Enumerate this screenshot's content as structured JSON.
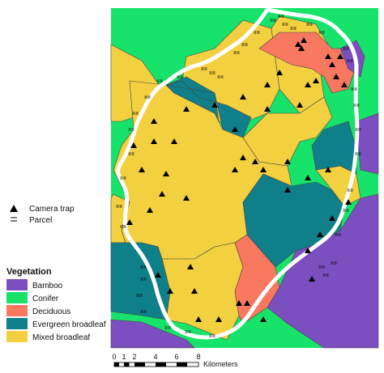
{
  "legend_symbols": [
    {
      "label": "Camera trap",
      "icon": "triangle-icon"
    },
    {
      "label": "Parcel",
      "icon": "parcel-icon"
    }
  ],
  "vegetation": {
    "title": "Vegetation",
    "classes": [
      {
        "label": "Bamboo",
        "color": "#7b4fbf"
      },
      {
        "label": "Conifer",
        "color": "#17e36a"
      },
      {
        "label": "Deciduous",
        "color": "#f97860"
      },
      {
        "label": "Evergreen broadleaf",
        "color": "#0f7f8a"
      },
      {
        "label": "Mixed broadleaf",
        "color": "#f3d040"
      }
    ]
  },
  "scale": {
    "ticks": [
      "0",
      "1",
      "2",
      "4",
      "6",
      "8"
    ],
    "unit": "Kilometers"
  },
  "colors": {
    "boundary": "#ffffff",
    "cell_border": "#444444"
  }
}
